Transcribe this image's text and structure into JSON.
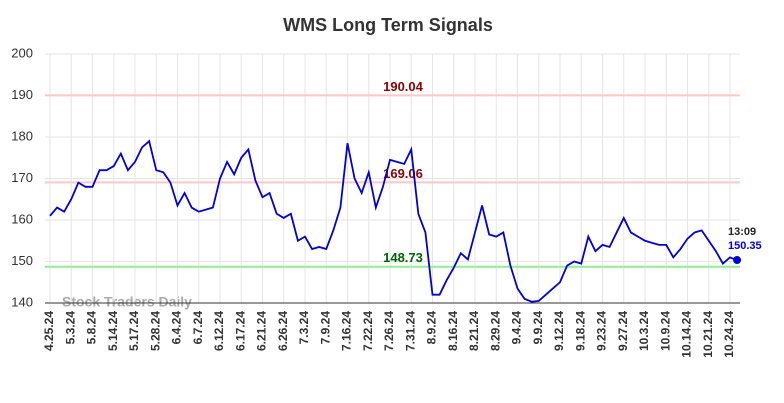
{
  "chart_data": {
    "type": "line",
    "title": "WMS Long Term Signals",
    "categories": [
      "4.25.24",
      null,
      null,
      "5.3.24",
      null,
      null,
      "5.8.24",
      null,
      null,
      "5.14.24",
      null,
      null,
      "5.17.24",
      null,
      null,
      "5.28.24",
      null,
      null,
      "6.4.24",
      null,
      null,
      "6.7.24",
      null,
      null,
      "6.12.24",
      null,
      null,
      "6.17.24",
      null,
      null,
      "6.21.24",
      null,
      null,
      "6.26.24",
      null,
      null,
      "7.3.24",
      null,
      null,
      "7.9.24",
      null,
      null,
      "7.16.24",
      null,
      null,
      "7.22.24",
      null,
      null,
      "7.26.24",
      null,
      null,
      "7.31.24",
      null,
      null,
      "8.9.24",
      null,
      null,
      "8.16.24",
      null,
      null,
      "8.21.24",
      null,
      null,
      "8.29.24",
      null,
      null,
      "9.4.24",
      null,
      null,
      "9.9.24",
      null,
      null,
      "9.12.24",
      null,
      null,
      "9.18.24",
      null,
      null,
      "9.23.24",
      null,
      null,
      "9.27.24",
      null,
      null,
      "10.3.24",
      null,
      null,
      "10.9.24",
      null,
      null,
      "10.14.24",
      null,
      null,
      "10.21.24",
      null,
      null,
      "10.24.24",
      null
    ],
    "values": [
      161,
      163,
      162,
      165,
      169,
      168,
      168,
      172,
      172,
      173,
      176,
      172,
      174,
      177.5,
      179,
      172,
      171.5,
      169,
      163.5,
      166.5,
      163,
      162,
      162.5,
      163,
      170,
      174,
      171,
      175,
      177,
      169.5,
      165.5,
      166.5,
      161.5,
      160.5,
      161.5,
      155,
      156,
      153,
      153.5,
      153,
      157.5,
      163,
      178.5,
      170,
      166.5,
      171.5,
      163,
      168,
      174.5,
      174,
      173.5,
      177,
      161.5,
      157,
      142,
      142,
      145.5,
      148.5,
      152,
      150.5,
      157,
      163.5,
      156.5,
      156,
      157,
      149,
      143.5,
      141,
      140.3,
      140.5,
      142,
      143.5,
      145,
      149,
      150,
      149.5,
      156,
      152.5,
      154,
      153.5,
      157,
      160.5,
      157,
      156,
      155,
      154.5,
      154,
      154,
      151,
      153,
      155.5,
      157,
      157.5,
      155,
      152.5,
      149.5,
      151,
      150.35
    ],
    "color": "#0000dd",
    "ylim": [
      140,
      200
    ],
    "yticks": [
      140,
      150,
      160,
      170,
      180,
      190,
      200
    ],
    "grid": true,
    "hlines": [
      {
        "value": 190.04,
        "color": "#ffc8c8",
        "label_color": "#8b0000"
      },
      {
        "value": 169.06,
        "color": "#ffc8c8",
        "label_color": "#8b0000"
      },
      {
        "value": 148.73,
        "color": "#90ee90",
        "label_color": "#006400"
      }
    ],
    "last_time": "13:09",
    "watermark": "Stock Traders Daily"
  }
}
